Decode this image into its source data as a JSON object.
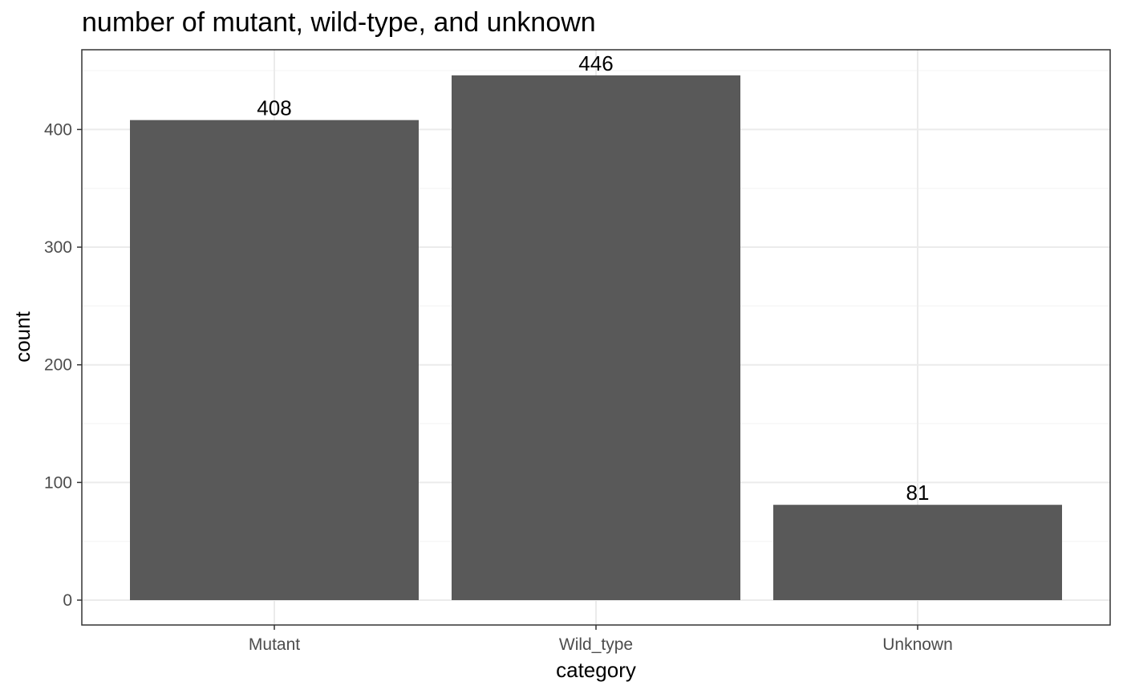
{
  "chart_data": {
    "type": "bar",
    "title": "number of mutant, wild-type, and unknown",
    "xlabel": "category",
    "ylabel": "count",
    "categories": [
      "Mutant",
      "Wild_type",
      "Unknown"
    ],
    "values": [
      408,
      446,
      81
    ],
    "data_labels": [
      "408",
      "446",
      "81"
    ],
    "ylim": [
      0,
      469
    ],
    "yticks": [
      0,
      100,
      200,
      300,
      400
    ],
    "ytick_labels": [
      "0",
      "100",
      "200",
      "300",
      "400"
    ],
    "grid": true,
    "legend": "none",
    "colors": {
      "bar": "#595959",
      "panel_border": "#333333",
      "grid_major": "#ebebeb",
      "grid_minor": "#f5f5f5",
      "tick_label": "#4d4d4d",
      "background": "#ffffff"
    }
  }
}
